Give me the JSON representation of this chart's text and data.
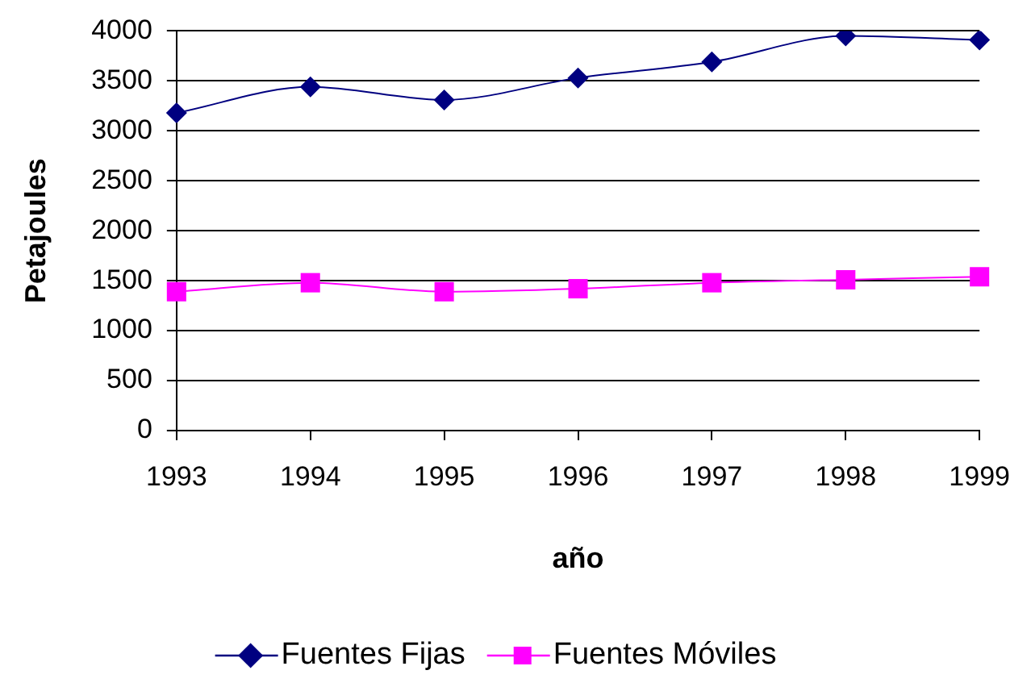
{
  "chart_data": {
    "type": "line",
    "xlabel": "año",
    "ylabel": "Petajoules",
    "categories": [
      "1993",
      "1994",
      "1995",
      "1996",
      "1997",
      "1998",
      "1999"
    ],
    "series": [
      {
        "name": "Fuentes Fijas",
        "color": "#000080",
        "marker": "diamond",
        "values": [
          3180,
          3440,
          3310,
          3530,
          3690,
          3950,
          3910
        ]
      },
      {
        "name": "Fuentes Móviles",
        "color": "#ff00ff",
        "marker": "square",
        "values": [
          1390,
          1480,
          1390,
          1420,
          1480,
          1510,
          1540
        ]
      }
    ],
    "ylim": [
      0,
      4000
    ],
    "yticks": [
      0,
      500,
      1000,
      1500,
      2000,
      2500,
      3000,
      3500,
      4000
    ],
    "grid": "y",
    "legend": "bottom",
    "line_style": "solid"
  }
}
